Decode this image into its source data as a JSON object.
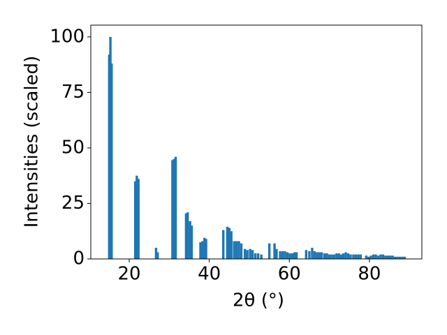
{
  "chart_data": {
    "type": "bar",
    "xlabel": "2θ (°)",
    "ylabel": "Intensities (scaled)",
    "x": [
      15.0,
      15.3,
      15.6,
      21.5,
      21.9,
      22.3,
      26.7,
      27.1,
      30.8,
      31.2,
      31.6,
      34.2,
      34.6,
      35.2,
      35.6,
      37.8,
      38.3,
      38.8,
      39.2,
      43.5,
      44.5,
      45.0,
      45.5,
      46.2,
      46.8,
      47.4,
      48.0,
      48.9,
      49.5,
      50.2,
      50.8,
      51.5,
      52.2,
      53.0,
      55.0,
      56.3,
      56.8,
      57.7,
      58.3,
      58.9,
      59.5,
      60.1,
      60.7,
      61.3,
      61.8,
      64.2,
      65.0,
      65.7,
      66.3,
      66.9,
      67.5,
      68.1,
      68.8,
      69.4,
      70.0,
      70.6,
      71.2,
      71.8,
      72.4,
      73.0,
      73.5,
      74.1,
      74.7,
      75.3,
      76.0,
      76.6,
      77.2,
      77.8,
      79.2,
      79.8,
      80.4,
      81.0,
      81.6,
      82.2,
      82.8,
      83.4,
      84.0,
      84.6,
      85.2,
      85.8,
      86.4,
      87.0,
      87.6,
      88.2,
      88.8
    ],
    "values": [
      92,
      100,
      88,
      35,
      37.5,
      36,
      5,
      3,
      44.5,
      45,
      46,
      20.5,
      21,
      17,
      15,
      7.5,
      8,
      9.5,
      9,
      13,
      14.5,
      14,
      12.5,
      8,
      8,
      8,
      7,
      4.5,
      4,
      4.5,
      4,
      2.5,
      2.5,
      2,
      7,
      7,
      4.5,
      3.5,
      3.5,
      3.5,
      3,
      2.5,
      2.5,
      3,
      3,
      4,
      3.5,
      5,
      3.5,
      3,
      3,
      3,
      2.5,
      2.5,
      2,
      2,
      2,
      2.5,
      2.5,
      2,
      2.5,
      3,
      2.5,
      2,
      2,
      2,
      2,
      2,
      1.5,
      1,
      1.5,
      2,
      2,
      1.5,
      2,
      2,
      1.5,
      1.5,
      1.5,
      1.5,
      1,
      1,
      1,
      1,
      1
    ],
    "color": "#1f77b4",
    "xlim": [
      10.4,
      93.1
    ],
    "ylim": [
      0,
      105.3
    ],
    "xticks": [
      20,
      40,
      60,
      80
    ],
    "yticks": [
      0,
      25,
      50,
      75,
      100
    ]
  }
}
